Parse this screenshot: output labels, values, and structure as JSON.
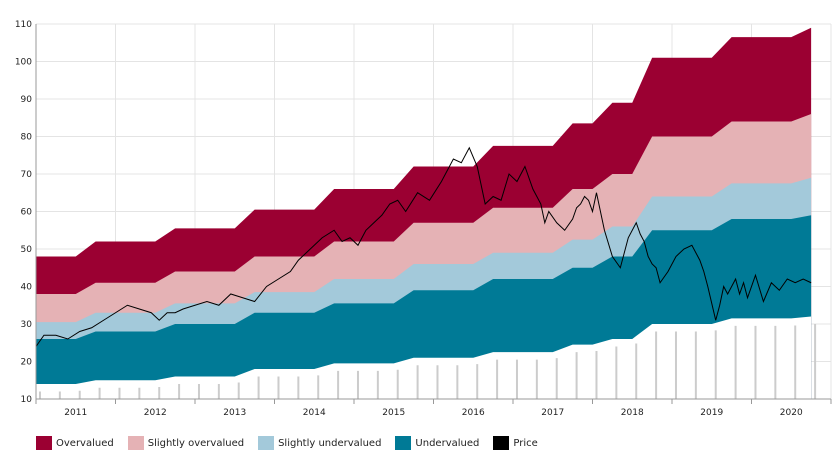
{
  "chart_data": {
    "type": "area",
    "title": "",
    "xlabel": "",
    "ylabel": "",
    "ylim": [
      10,
      110
    ],
    "yticks": [
      10,
      20,
      30,
      40,
      50,
      60,
      70,
      80,
      90,
      100,
      110
    ],
    "x_tick_labels": [
      "2011",
      "2012",
      "2013",
      "2014",
      "2015",
      "2016",
      "2017",
      "2018",
      "2019",
      "2020"
    ],
    "grid": true,
    "legend_position": "bottom-left",
    "colors": {
      "Overvalued": "#9b0032",
      "Slightly overvalued": "#e5b2b5",
      "Slightly undervalued": "#a3c9da",
      "Undervalued": "#007a96",
      "Price": "#000000",
      "floor_bar": "#cccccc"
    },
    "band_x": [
      2010.75,
      2011.25,
      2011.5,
      2012.25,
      2012.5,
      2013.25,
      2013.5,
      2014.25,
      2014.5,
      2015.25,
      2015.5,
      2016.25,
      2016.5,
      2017.25,
      2017.5,
      2017.75,
      2018.0,
      2018.25,
      2018.5,
      2019.25,
      2019.5,
      2020.25,
      2020.5
    ],
    "bands": [
      {
        "name": "Undervalued floor",
        "values": [
          14,
          14,
          15,
          15,
          16,
          16,
          18,
          18,
          19.5,
          19.5,
          21,
          21,
          22.5,
          22.5,
          24.5,
          24.5,
          26,
          26,
          30,
          30,
          31.5,
          31.5,
          32
        ]
      },
      {
        "name": "Undervalued",
        "values": [
          26,
          26,
          28,
          28,
          30,
          30,
          33,
          33,
          35.5,
          35.5,
          39,
          39,
          42,
          42,
          45,
          45,
          48,
          48,
          55,
          55,
          58,
          58,
          59
        ]
      },
      {
        "name": "Slightly undervalued",
        "values": [
          30.5,
          30.5,
          33,
          33,
          35.5,
          35.5,
          38.5,
          38.5,
          42,
          42,
          46,
          46,
          49,
          49,
          52.5,
          52.5,
          56,
          56,
          64,
          64,
          67.5,
          67.5,
          69
        ]
      },
      {
        "name": "Slightly overvalued",
        "values": [
          38,
          38,
          41,
          41,
          44,
          44,
          48,
          48,
          52,
          52,
          57,
          57,
          61,
          61,
          66,
          66,
          70,
          70,
          80,
          80,
          84,
          84,
          86
        ]
      },
      {
        "name": "Overvalued",
        "values": [
          48,
          48,
          52,
          52,
          55.5,
          55.5,
          60.5,
          60.5,
          66,
          66,
          72,
          72,
          77.5,
          77.5,
          83.5,
          83.5,
          89,
          89,
          101,
          101,
          106.5,
          106.5,
          109
        ]
      }
    ],
    "price_x": [
      2010.75,
      2010.85,
      2011.0,
      2011.15,
      2011.3,
      2011.45,
      2011.6,
      2011.75,
      2011.9,
      2012.05,
      2012.2,
      2012.3,
      2012.4,
      2012.5,
      2012.6,
      2012.75,
      2012.9,
      2013.05,
      2013.2,
      2013.35,
      2013.5,
      2013.65,
      2013.8,
      2013.95,
      2014.05,
      2014.2,
      2014.35,
      2014.5,
      2014.6,
      2014.7,
      2014.8,
      2014.9,
      2015.0,
      2015.1,
      2015.2,
      2015.3,
      2015.4,
      2015.55,
      2015.7,
      2015.85,
      2016.0,
      2016.1,
      2016.2,
      2016.3,
      2016.4,
      2016.5,
      2016.6,
      2016.7,
      2016.8,
      2016.9,
      2017.0,
      2017.1,
      2017.15,
      2017.2,
      2017.3,
      2017.4,
      2017.5,
      2017.55,
      2017.6,
      2017.65,
      2017.7,
      2017.75,
      2017.8,
      2017.9,
      2018.0,
      2018.1,
      2018.2,
      2018.3,
      2018.35,
      2018.4,
      2018.45,
      2018.5,
      2018.55,
      2018.6,
      2018.7,
      2018.8,
      2018.9,
      2019.0,
      2019.1,
      2019.15,
      2019.2,
      2019.3,
      2019.35,
      2019.4,
      2019.45,
      2019.5,
      2019.55,
      2019.6,
      2019.65,
      2019.7,
      2019.8,
      2019.9,
      2020.0,
      2020.1,
      2020.2,
      2020.3,
      2020.4,
      2020.5
    ],
    "price": [
      24,
      27,
      27,
      26,
      28,
      29,
      31,
      33,
      35,
      34,
      33,
      31,
      33,
      33,
      34,
      35,
      36,
      35,
      38,
      37,
      36,
      40,
      42,
      44,
      47,
      50,
      53,
      55,
      52,
      53,
      51,
      55,
      57,
      59,
      62,
      63,
      60,
      65,
      63,
      68,
      74,
      73,
      77,
      72,
      62,
      64,
      63,
      70,
      68,
      72,
      66,
      62,
      57,
      60,
      57,
      55,
      58,
      61,
      62,
      64,
      63,
      60,
      65,
      55,
      48,
      45,
      53,
      57,
      54,
      52,
      48,
      46,
      45,
      41,
      44,
      48,
      50,
      51,
      47,
      44,
      40,
      31,
      35,
      40,
      38,
      40,
      42,
      38,
      41,
      37,
      43,
      36,
      41,
      39,
      42,
      41,
      42,
      41
    ],
    "floor_bars_x": [
      2010.8,
      2011.05,
      2011.3,
      2011.55,
      2011.8,
      2012.05,
      2012.3,
      2012.55,
      2012.8,
      2013.05,
      2013.3,
      2013.55,
      2013.8,
      2014.05,
      2014.3,
      2014.55,
      2014.8,
      2015.05,
      2015.3,
      2015.55,
      2015.8,
      2016.05,
      2016.3,
      2016.55,
      2016.8,
      2017.05,
      2017.3,
      2017.55,
      2017.8,
      2018.05,
      2018.3,
      2018.55,
      2018.8,
      2019.05,
      2019.3,
      2019.55,
      2019.8,
      2020.05,
      2020.3,
      2020.55
    ]
  },
  "legend": [
    {
      "label": "Overvalued",
      "key": "Overvalued"
    },
    {
      "label": "Slightly overvalued",
      "key": "Slightly overvalued"
    },
    {
      "label": "Slightly undervalued",
      "key": "Slightly undervalued"
    },
    {
      "label": "Undervalued",
      "key": "Undervalued"
    },
    {
      "label": "Price",
      "key": "Price"
    }
  ]
}
